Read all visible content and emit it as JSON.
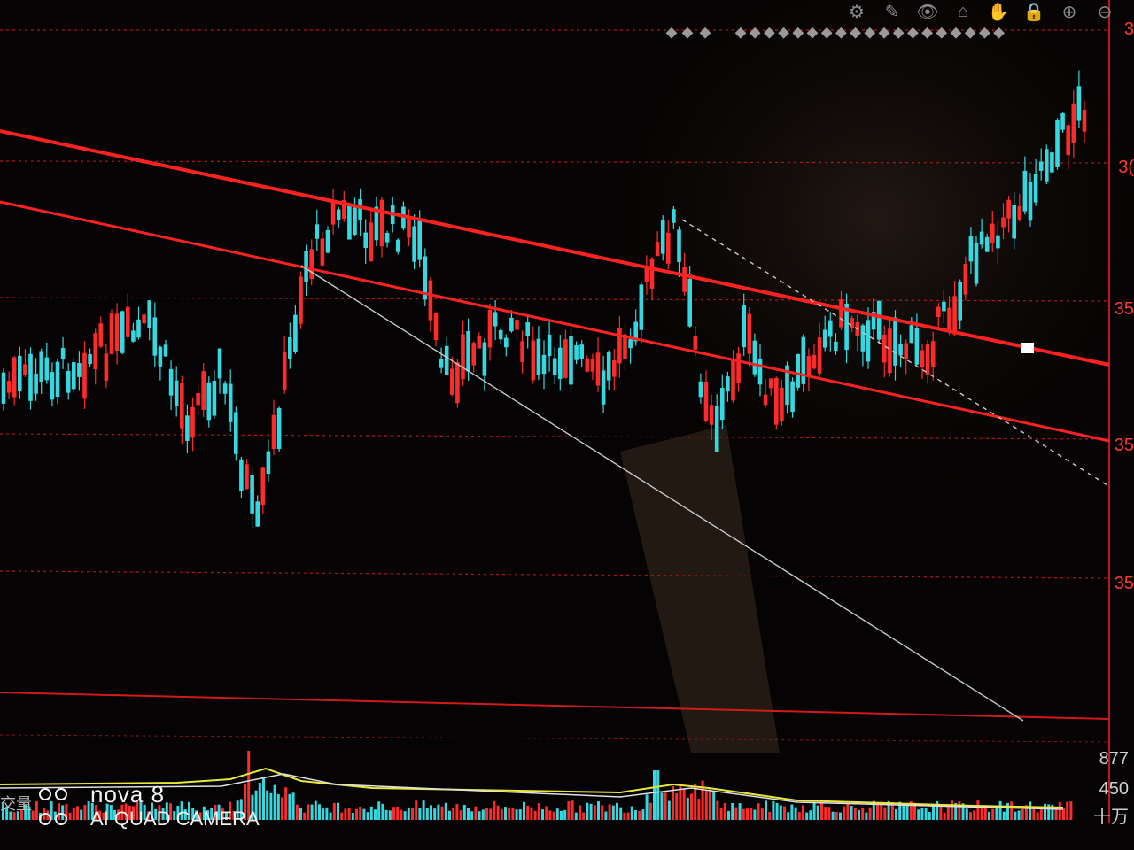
{
  "toolbar": [
    {
      "name": "settings-gear-icon",
      "glyph": "⚙"
    },
    {
      "name": "pen-draw-icon",
      "glyph": "✎"
    },
    {
      "name": "eye-view-icon",
      "glyph": "👁"
    },
    {
      "name": "eraser-icon",
      "glyph": "⌂"
    },
    {
      "name": "hand-pan-icon",
      "glyph": "✋"
    },
    {
      "name": "lock-icon",
      "glyph": "🔒"
    },
    {
      "name": "zoom-in-icon",
      "glyph": "⊕"
    },
    {
      "name": "zoom-out-icon",
      "glyph": "⊖"
    }
  ],
  "price_axis_labels": [
    {
      "text": "3",
      "id": "y1"
    },
    {
      "text": "3(",
      "id": "y2"
    },
    {
      "text": "35",
      "id": "y3"
    },
    {
      "text": "35",
      "id": "y4"
    },
    {
      "text": "35",
      "id": "y5"
    }
  ],
  "volume_axis_labels": [
    "877",
    "450",
    "十万"
  ],
  "volume_side_label": "交量",
  "watermark": {
    "brand": "nova 8",
    "subtitle": "AI QUAD CAMERA"
  },
  "colors": {
    "background": "#050303",
    "up_candle": "#ff2a2a",
    "down_candle": "#33d8e0",
    "trend_line": "#ff2222",
    "support_line": "#c8c8c8",
    "grid": "#b01818",
    "axis_text": "#ff3a2e"
  }
}
